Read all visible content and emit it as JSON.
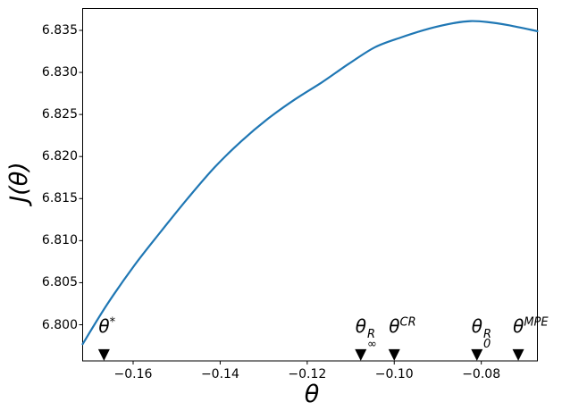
{
  "chart_data": {
    "type": "line",
    "title": "",
    "xlabel": "θ",
    "ylabel": "J(θ)",
    "xlim": [
      -0.1716,
      -0.0671
    ],
    "ylim": [
      6.7957,
      6.8376
    ],
    "grid": false,
    "legend": "none",
    "line_color": "#1f77b4",
    "x_ticks": {
      "values": [
        -0.16,
        -0.14,
        -0.12,
        -0.1,
        -0.08
      ],
      "labels": [
        "−0.16",
        "−0.14",
        "−0.12",
        "−0.10",
        "−0.08"
      ]
    },
    "y_ticks": {
      "values": [
        6.8,
        6.805,
        6.81,
        6.815,
        6.82,
        6.825,
        6.83,
        6.835
      ],
      "labels": [
        "6.800",
        "6.805",
        "6.810",
        "6.815",
        "6.820",
        "6.825",
        "6.830",
        "6.835"
      ]
    },
    "series": [
      {
        "name": "objective-curve",
        "points": [
          [
            -0.1716,
            6.7977
          ],
          [
            -0.166,
            6.8024
          ],
          [
            -0.1598,
            6.807
          ],
          [
            -0.1536,
            6.8111
          ],
          [
            -0.1475,
            6.815
          ],
          [
            -0.1413,
            6.8187
          ],
          [
            -0.1352,
            6.8218
          ],
          [
            -0.129,
            6.8245
          ],
          [
            -0.1228,
            6.8268
          ],
          [
            -0.1167,
            6.8288
          ],
          [
            -0.1105,
            6.831
          ],
          [
            -0.1044,
            6.833
          ],
          [
            -0.0982,
            6.8342
          ],
          [
            -0.092,
            6.8352
          ],
          [
            -0.0859,
            6.8359
          ],
          [
            -0.0824,
            6.8361
          ],
          [
            -0.0787,
            6.836
          ],
          [
            -0.0736,
            6.8356
          ],
          [
            -0.0671,
            6.8349
          ]
        ]
      }
    ],
    "markers": {
      "shape": "triangle-down",
      "color": "#000000",
      "y": 6.7964,
      "items": [
        {
          "name": "theta-star",
          "theta": -0.1667,
          "base": "θ",
          "sup": "*",
          "sub": ""
        },
        {
          "name": "theta-inf-R",
          "theta": -0.1077,
          "base": "θ",
          "sup": "R",
          "sub": "∞"
        },
        {
          "name": "theta-CR",
          "theta": -0.1,
          "base": "θ",
          "sup": "CR",
          "sub": ""
        },
        {
          "name": "theta-0-R",
          "theta": -0.081,
          "base": "θ",
          "sup": "R",
          "sub": "0"
        },
        {
          "name": "theta-MPE",
          "theta": -0.0715,
          "base": "θ",
          "sup": "MPE",
          "sub": ""
        }
      ]
    }
  }
}
